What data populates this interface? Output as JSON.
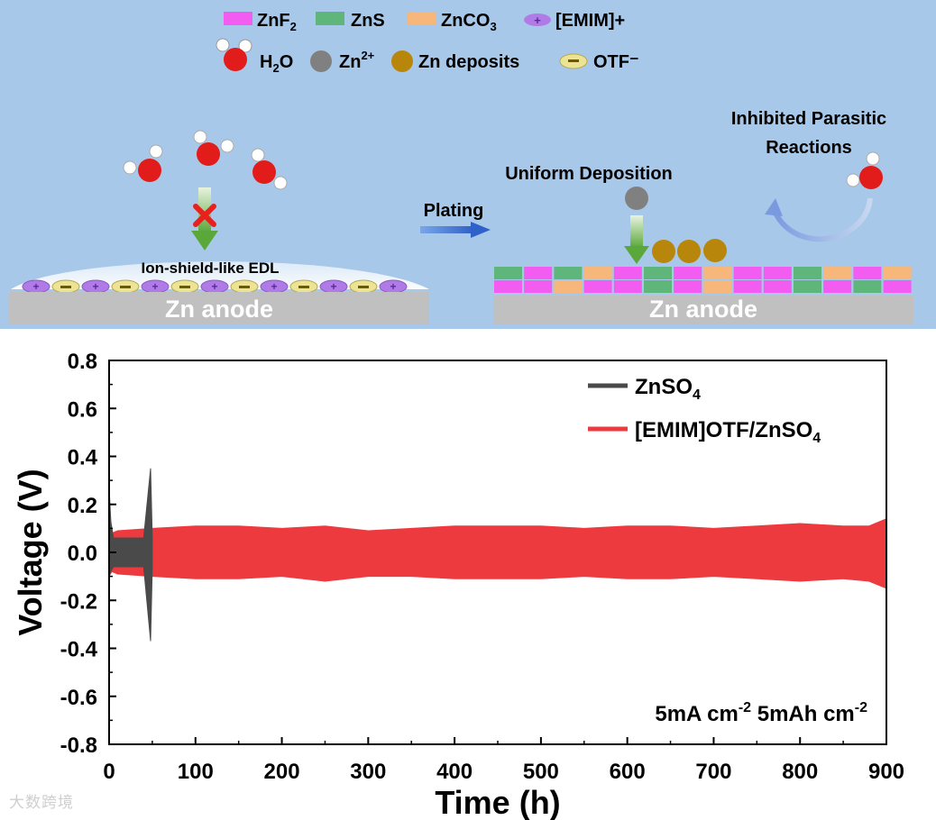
{
  "colors": {
    "sky": "#a8c8ea",
    "znf2": "#f25cf0",
    "zns": "#5fb67a",
    "znco3": "#f7b67a",
    "emim": "#b07be6",
    "otf": "#ece494",
    "water_o": "#e21b1b",
    "zn_ion": "#808080",
    "zn_deposit": "#b8860b",
    "znso4_series": "#4a4a4a",
    "emim_series": "#ec3a3f",
    "anode": "#c0c0c0"
  },
  "legend": {
    "znf2": "ZnF",
    "znf2_sub": "2",
    "zns": "ZnS",
    "znco3": "ZnCO",
    "znco3_sub": "3",
    "emim": "[EMIM]+",
    "h2o": "H",
    "h2o_sub": "2",
    "h2o_end": "O",
    "zn_ion": "Zn",
    "zn_ion_sup": "2+",
    "zn_deposits": "Zn deposits",
    "otf": "OTF⁻"
  },
  "schematic": {
    "left_anode": "Zn anode",
    "right_anode": "Zn anode",
    "edl_label": "Ion-shield-like EDL",
    "plating": "Plating",
    "uniform_deposition": "Uniform Deposition",
    "parasitic_line1": "Inhibited Parasitic",
    "parasitic_line2": "Reactions"
  },
  "chart_data": {
    "type": "line",
    "xlabel": "Time (h)",
    "ylabel": "Voltage (V)",
    "xlim": [
      0,
      900
    ],
    "ylim": [
      -0.8,
      0.8
    ],
    "x_ticks": [
      "0",
      "100",
      "200",
      "300",
      "400",
      "500",
      "600",
      "700",
      "800",
      "900"
    ],
    "y_ticks": [
      "0.8",
      "0.6",
      "0.4",
      "0.2",
      "0.0",
      "-0.2",
      "-0.4",
      "-0.6",
      "-0.8"
    ],
    "annotation": "5mA cm",
    "annotation_sup1": "-2",
    "annotation_mid": " 5mAh cm",
    "annotation_sup2": "-2",
    "series": [
      {
        "name": "ZnSO",
        "name_sub": "4",
        "x_range": [
          0,
          50
        ],
        "envelope": {
          "x": [
            0,
            2,
            5,
            10,
            20,
            30,
            40,
            48,
            50
          ],
          "upper": [
            0.27,
            0.13,
            0.06,
            0.06,
            0.06,
            0.06,
            0.06,
            0.35,
            0.06
          ],
          "lower": [
            -0.1,
            -0.08,
            -0.06,
            -0.06,
            -0.06,
            -0.06,
            -0.06,
            -0.37,
            -0.06
          ]
        }
      },
      {
        "name": "[EMIM]OTF/ZnSO",
        "name_sub": "4",
        "x_range": [
          0,
          900
        ],
        "envelope": {
          "x": [
            0,
            3,
            10,
            50,
            100,
            150,
            200,
            250,
            300,
            350,
            400,
            450,
            500,
            550,
            600,
            650,
            700,
            750,
            800,
            850,
            880,
            900
          ],
          "upper": [
            0.2,
            0.08,
            0.09,
            0.1,
            0.11,
            0.11,
            0.1,
            0.11,
            0.09,
            0.1,
            0.11,
            0.11,
            0.11,
            0.1,
            0.11,
            0.11,
            0.1,
            0.11,
            0.12,
            0.11,
            0.11,
            0.14
          ],
          "lower": [
            -0.1,
            -0.08,
            -0.09,
            -0.1,
            -0.11,
            -0.11,
            -0.1,
            -0.12,
            -0.1,
            -0.1,
            -0.11,
            -0.11,
            -0.11,
            -0.1,
            -0.11,
            -0.11,
            -0.1,
            -0.11,
            -0.12,
            -0.11,
            -0.12,
            -0.15
          ]
        }
      }
    ]
  },
  "watermark": "大数跨境"
}
